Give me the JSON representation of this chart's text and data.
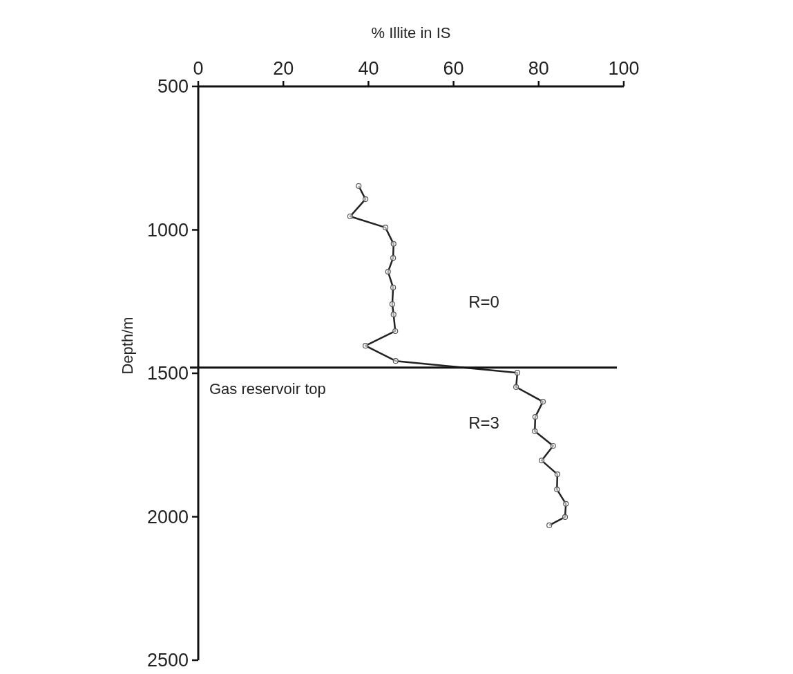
{
  "chart_data": {
    "type": "line",
    "xlabel": "% Illite in IS",
    "ylabel": "Depth/m",
    "xlim": [
      0,
      100
    ],
    "xticks": [
      0,
      20,
      40,
      60,
      80,
      100
    ],
    "ylim": [
      2500,
      500
    ],
    "yticks": [
      500,
      1000,
      1500,
      2000,
      2500
    ],
    "marker": "circle",
    "grid": false,
    "series": [
      {
        "color": "#222222",
        "x": [
          37.7,
          39.3,
          35.7,
          44.0,
          45.9,
          45.8,
          44.6,
          45.8,
          45.6,
          45.9,
          46.3,
          39.3,
          46.4,
          75.0,
          74.7,
          81.0,
          79.2,
          79.1,
          83.4,
          80.7,
          84.4,
          84.3,
          86.4,
          86.2,
          82.5
        ],
        "values": [
          847,
          893,
          953,
          992,
          1049,
          1098,
          1146,
          1201,
          1259,
          1295,
          1353,
          1404,
          1457,
          1498,
          1548,
          1599,
          1652,
          1702,
          1753,
          1804,
          1852,
          1905,
          1955,
          2001,
          2030
        ]
      }
    ],
    "ref_lines": [
      {
        "axis": "y",
        "value": 1480,
        "label": "Gas reservoir top",
        "color": "#111111"
      }
    ],
    "annotations": [
      "R=0",
      "R=3"
    ]
  }
}
